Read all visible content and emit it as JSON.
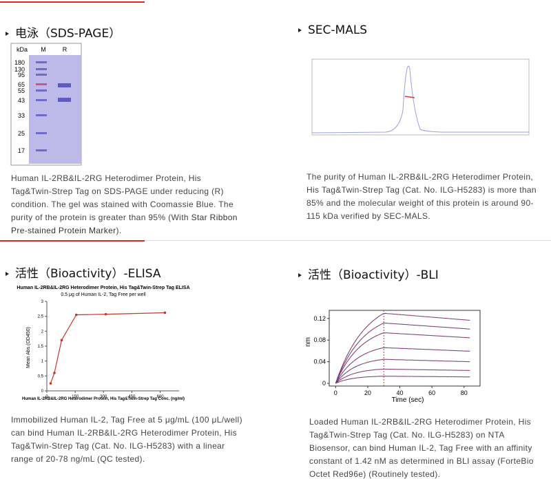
{
  "sds": {
    "heading": "电泳（SDS-PAGE）",
    "gel": {
      "unit": "kDa",
      "lanes": [
        "M",
        "R"
      ],
      "markers": [
        "180",
        "130",
        "95",
        "65",
        "55",
        "43",
        "33",
        "25",
        "17"
      ]
    },
    "caption": {
      "text": "Human IL-2RB&IL-2RG Heterodimer Protein, His Tag&Twin-Strep Tag on SDS-PAGE under reducing (R) condition. The gel was stained with Coomassie Blue. The purity of the protein is greater than 95% (With ",
      "link": "Star Ribbon Pre-stained Protein Marker",
      "end": ")."
    }
  },
  "sec": {
    "heading": "SEC-MALS",
    "caption": "The purity of Human IL-2RB&IL-2RG Heterodimer Protein, His Tag&Twin-Strep Tag (Cat. No. ILG-H5283) is more than 85% and the molecular weight of this protein is around 90-115 kDa verified by SEC-MALS."
  },
  "elisa": {
    "heading": "活性（Bioactivity）-ELISA",
    "title": "Human IL-2RB&IL-2RG Heterodimer Protein, His Tag&Twin-Strep Tag ELISA",
    "subtitle": "0.5 μg of Human IL-2, Tag Free per well",
    "ylabel": "Mean Abs.(OD450)",
    "xlabel": "Human IL-2RB&IL-2RG Heterodimer Protein, His Tag&Twin-Strep Tag Conc. (ng/ml)",
    "x": [
      20,
      40,
      78,
      156,
      312,
      625
    ],
    "values": [
      0.25,
      0.6,
      1.7,
      2.55,
      2.57,
      2.62
    ],
    "color": "#c0392b",
    "xlim": [
      0,
      700
    ],
    "ylim": [
      0,
      3
    ],
    "xticks": [
      0,
      150,
      300,
      450,
      600
    ],
    "yticks": [
      0,
      0.5,
      1,
      1.5,
      2,
      2.5,
      3
    ],
    "caption": "Immobilized Human IL-2, Tag Free at 5 μg/mL (100 μL/well) can bind Human IL-2RB&IL-2RG Heterodimer Protein, His Tag&Twin-Strep Tag (Cat. No. ILG-H5283) with a linear range of 20-78 ng/mL (QC tested)."
  },
  "bli": {
    "heading": "活性（Bioactivity）-BLI",
    "ylabel": "nm",
    "xlabel": "Time (sec)",
    "xlim": [
      -4,
      90
    ],
    "ylim": [
      -0.005,
      0.135
    ],
    "xticks": [
      0,
      20,
      40,
      60,
      80
    ],
    "yticks": [
      0,
      0.04,
      0.08,
      0.12
    ],
    "caption": "Loaded Human IL-2RB&IL-2RG Heterodimer Protein, His Tag&Twin-Strep Tag (Cat. No. ILG-H5283) on NTA Biosensor, can bind Human IL-2, Tag Free with an affinity constant of 1.42 nM as determined in BLI assay (ForteBio Octet Red96e) (Routinely tested)."
  }
}
